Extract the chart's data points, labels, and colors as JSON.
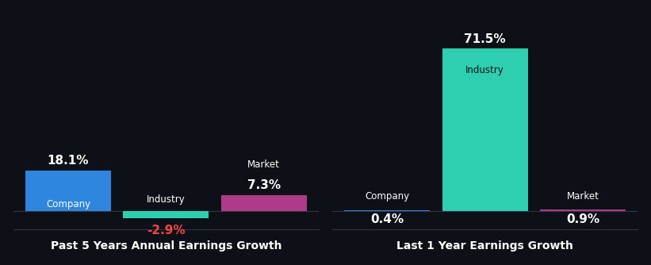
{
  "background_color": "#0d1117",
  "shared_ylim": [
    -8,
    87
  ],
  "chart1": {
    "title": "Past 5 Years Annual Earnings Growth",
    "values": [
      18.1,
      -2.9,
      7.3
    ],
    "colors": [
      "#2e86de",
      "#2ecfb1",
      "#b03a8a"
    ],
    "bar_labels": [
      "Company",
      "Industry",
      "Market"
    ],
    "value_labels": [
      "18.1%",
      "-2.9%",
      "7.3%"
    ],
    "value_colors": [
      "#ffffff",
      "#ff4444",
      "#ffffff"
    ],
    "label_colors": [
      "#ffffff",
      "#ffffff",
      "#ffffff"
    ]
  },
  "chart2": {
    "title": "Last 1 Year Earnings Growth",
    "values": [
      0.4,
      71.5,
      0.9
    ],
    "colors": [
      "#2e86de",
      "#2ecfb1",
      "#b03a8a"
    ],
    "bar_labels": [
      "Company",
      "Industry",
      "Market"
    ],
    "value_labels": [
      "0.4%",
      "71.5%",
      "0.9%"
    ],
    "value_colors": [
      "#ffffff",
      "#ffffff",
      "#ffffff"
    ],
    "label_colors": [
      "#ffffff",
      "#ffffff",
      "#ffffff"
    ]
  },
  "x_positions": [
    0.18,
    0.5,
    0.82
  ],
  "bar_width": 0.28,
  "title_fontsize": 10,
  "label_fontsize": 8.5,
  "value_fontsize": 11
}
